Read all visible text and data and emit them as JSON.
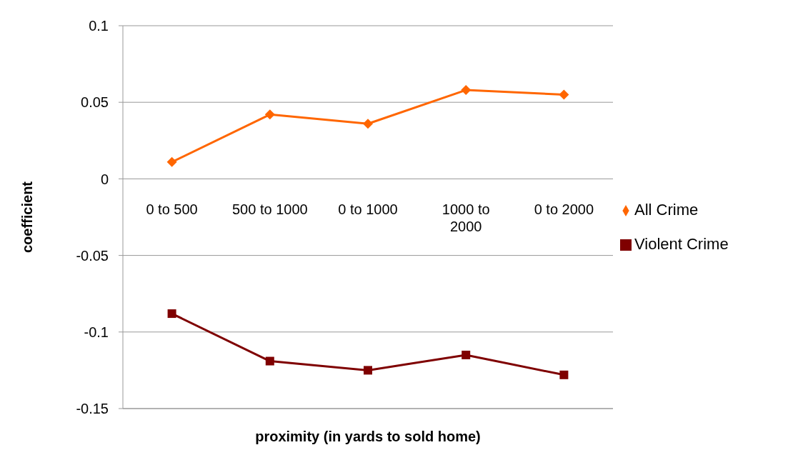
{
  "chart_data": {
    "type": "line",
    "xlabel": "proximity (in yards to sold home)",
    "ylabel": "coefficient",
    "categories": [
      "0 to 500",
      "500 to 1000",
      "0 to 1000",
      "1000 to 2000",
      "0 to 2000"
    ],
    "series": [
      {
        "name": "All Crime",
        "color": "#ff6600",
        "marker": "diamond",
        "values": [
          0.011,
          0.042,
          0.036,
          0.058,
          0.055
        ]
      },
      {
        "name": "Violent Crime",
        "color": "#7f0000",
        "marker": "square",
        "values": [
          -0.088,
          -0.119,
          -0.125,
          -0.115,
          -0.128
        ]
      }
    ],
    "ylim": [
      -0.15,
      0.1
    ],
    "yticks": [
      -0.15,
      -0.1,
      -0.05,
      0,
      0.05,
      0.1
    ],
    "grid": "y",
    "legend": "right"
  }
}
